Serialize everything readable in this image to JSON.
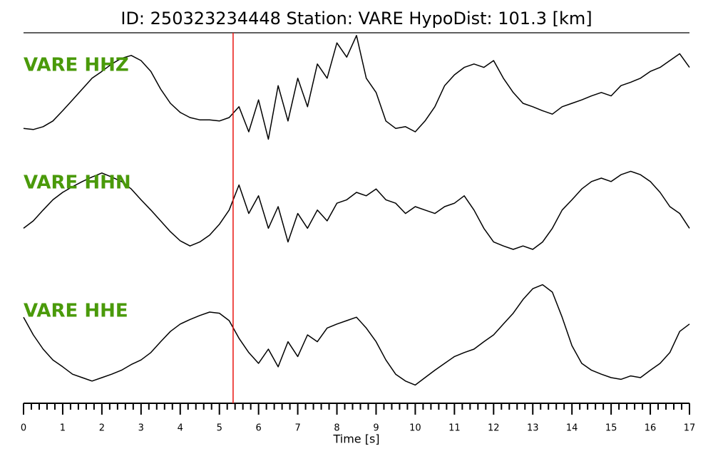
{
  "chart_data": {
    "type": "line",
    "title": "ID: 250323234448   Station: VARE   HypoDist:   101.3 [km]",
    "x_label": "Time [s]",
    "xlim": [
      0,
      17
    ],
    "xticks": [
      0,
      1,
      2,
      3,
      4,
      5,
      6,
      7,
      8,
      9,
      10,
      11,
      12,
      13,
      14,
      15,
      16,
      17
    ],
    "xminorticks": [
      0.2,
      0.4,
      0.6,
      0.8,
      1.2,
      1.4,
      1.6,
      1.8,
      2.2,
      2.4,
      2.6,
      2.8,
      3.2,
      3.4,
      3.6,
      3.8,
      4.2,
      4.4,
      4.6,
      4.8,
      5.2,
      5.4,
      5.6,
      5.8,
      6.2,
      6.4,
      6.6,
      6.8,
      7.2,
      7.4,
      7.6,
      7.8,
      8.2,
      8.4,
      8.6,
      8.8,
      9.2,
      9.4,
      9.6,
      9.8,
      10.2,
      10.4,
      10.6,
      10.8,
      11.2,
      11.4,
      11.6,
      11.8,
      12.2,
      12.4,
      12.6,
      12.8,
      13.2,
      13.4,
      13.6,
      13.8,
      14.2,
      14.4,
      14.6,
      14.8,
      15.2,
      15.4,
      15.6,
      15.8,
      16.2,
      16.4,
      16.6,
      16.8
    ],
    "marker": {
      "x": 5.35,
      "color": "#e8130f"
    },
    "label_color": "#4a9a0a",
    "ylim": [
      -1,
      1
    ],
    "x": [
      0,
      0.25,
      0.5,
      0.75,
      1,
      1.25,
      1.5,
      1.75,
      2,
      2.25,
      2.5,
      2.75,
      3,
      3.25,
      3.5,
      3.75,
      4,
      4.25,
      4.5,
      4.75,
      5,
      5.25,
      5.5,
      5.75,
      6,
      6.25,
      6.5,
      6.75,
      7,
      7.25,
      7.5,
      7.75,
      8,
      8.25,
      8.5,
      8.75,
      9,
      9.25,
      9.5,
      9.75,
      10,
      10.25,
      10.5,
      10.75,
      11,
      11.25,
      11.5,
      11.75,
      12,
      12.25,
      12.5,
      12.75,
      13,
      13.25,
      13.5,
      13.75,
      14,
      14.25,
      14.5,
      14.75,
      15,
      15.25,
      15.5,
      15.75,
      16,
      16.25,
      16.5,
      16.75,
      17
    ],
    "series": [
      {
        "name": "VARE HHZ",
        "color": "#000000",
        "values": [
          -0.69,
          -0.71,
          -0.66,
          -0.56,
          -0.38,
          -0.19,
          0,
          0.19,
          0.31,
          0.44,
          0.54,
          0.59,
          0.5,
          0.31,
          0,
          -0.25,
          -0.41,
          -0.5,
          -0.54,
          -0.54,
          -0.56,
          -0.5,
          -0.31,
          -0.75,
          -0.19,
          -0.88,
          0.06,
          -0.56,
          0.19,
          -0.31,
          0.44,
          0.19,
          0.81,
          0.56,
          0.94,
          0.19,
          -0.06,
          -0.56,
          -0.69,
          -0.66,
          -0.75,
          -0.56,
          -0.31,
          0.06,
          0.25,
          0.38,
          0.44,
          0.38,
          0.5,
          0.19,
          -0.06,
          -0.25,
          -0.31,
          -0.38,
          -0.44,
          -0.31,
          -0.25,
          -0.19,
          -0.12,
          -0.06,
          -0.12,
          0.06,
          0.12,
          0.19,
          0.31,
          0.38,
          0.5,
          0.62,
          0.38
        ]
      },
      {
        "name": "VARE HHN",
        "color": "#000000",
        "values": [
          -0.38,
          -0.25,
          -0.06,
          0.12,
          0.25,
          0.35,
          0.44,
          0.52,
          0.59,
          0.52,
          0.44,
          0.31,
          0.12,
          -0.06,
          -0.25,
          -0.44,
          -0.6,
          -0.69,
          -0.62,
          -0.5,
          -0.31,
          -0.06,
          0.38,
          -0.12,
          0.19,
          -0.38,
          0,
          -0.62,
          -0.12,
          -0.38,
          -0.06,
          -0.25,
          0.06,
          0.12,
          0.25,
          0.19,
          0.31,
          0.12,
          0.06,
          -0.12,
          0,
          -0.06,
          -0.12,
          0,
          0.06,
          0.19,
          -0.06,
          -0.38,
          -0.62,
          -0.69,
          -0.75,
          -0.69,
          -0.75,
          -0.62,
          -0.38,
          -0.06,
          0.12,
          0.31,
          0.44,
          0.5,
          0.44,
          0.56,
          0.62,
          0.56,
          0.44,
          0.25,
          0,
          -0.12,
          -0.38
        ]
      },
      {
        "name": "VARE HHE",
        "color": "#000000",
        "values": [
          0.31,
          0,
          -0.25,
          -0.44,
          -0.56,
          -0.69,
          -0.75,
          -0.81,
          -0.75,
          -0.69,
          -0.62,
          -0.52,
          -0.44,
          -0.31,
          -0.12,
          0.06,
          0.19,
          0.27,
          0.34,
          0.4,
          0.38,
          0.25,
          -0.06,
          -0.31,
          -0.5,
          -0.25,
          -0.56,
          -0.12,
          -0.38,
          0,
          -0.12,
          0.12,
          0.19,
          0.25,
          0.31,
          0.12,
          -0.12,
          -0.44,
          -0.69,
          -0.81,
          -0.88,
          -0.75,
          -0.62,
          -0.5,
          -0.38,
          -0.31,
          -0.25,
          -0.12,
          0,
          0.19,
          0.38,
          0.62,
          0.81,
          0.88,
          0.75,
          0.31,
          -0.19,
          -0.5,
          -0.62,
          -0.69,
          -0.75,
          -0.78,
          -0.72,
          -0.75,
          -0.62,
          -0.5,
          -0.31,
          0.06,
          0.19
        ]
      }
    ]
  }
}
